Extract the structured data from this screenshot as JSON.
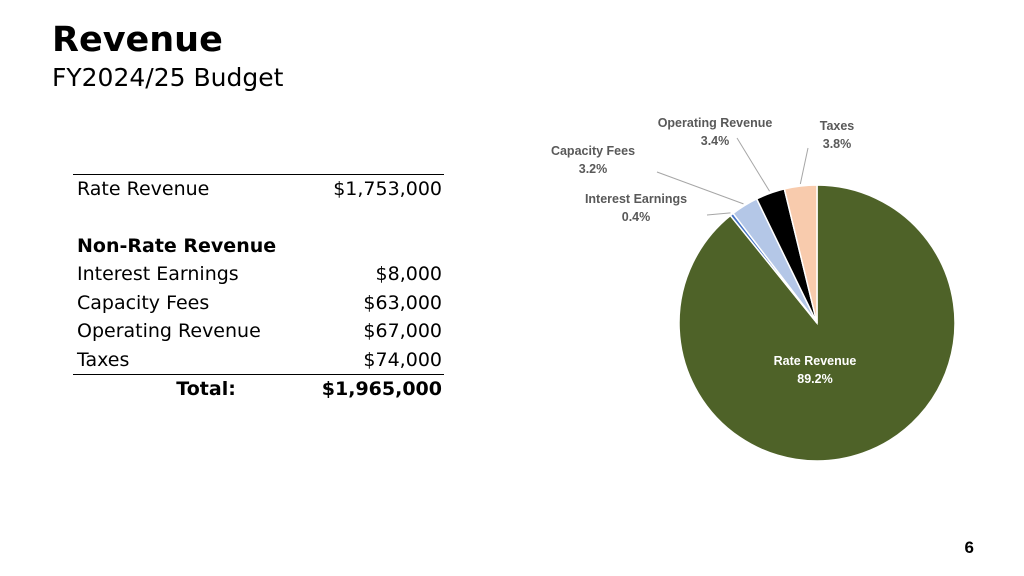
{
  "header": {
    "title": "Revenue",
    "subtitle": "FY2024/25 Budget"
  },
  "table": {
    "rate_row": {
      "label": "Rate Revenue",
      "amount": "$1,753,000"
    },
    "non_rate_heading": "Non-Rate Revenue",
    "rows": [
      {
        "label": "Interest Earnings",
        "amount": "$8,000"
      },
      {
        "label": "Capacity Fees",
        "amount": "$63,000"
      },
      {
        "label": "Operating Revenue",
        "amount": "$67,000"
      },
      {
        "label": "Taxes",
        "amount": "$74,000"
      }
    ],
    "total": {
      "label": "Total:",
      "amount": "$1,965,000"
    }
  },
  "chart_data": {
    "type": "pie",
    "slices": [
      {
        "name": "Rate Revenue",
        "value": 89.2,
        "label": "89.2%",
        "color": "#4e6228"
      },
      {
        "name": "Interest Earnings",
        "value": 0.4,
        "label": "0.4%",
        "color": "#4472c4"
      },
      {
        "name": "Capacity Fees",
        "value": 3.2,
        "label": "3.2%",
        "color": "#b4c7e7"
      },
      {
        "name": "Operating Revenue",
        "value": 3.4,
        "label": "3.4%",
        "color": "#000000"
      },
      {
        "name": "Taxes",
        "value": 3.8,
        "label": "3.8%",
        "color": "#f8cbad"
      }
    ]
  },
  "footer": {
    "page_number": "6"
  }
}
